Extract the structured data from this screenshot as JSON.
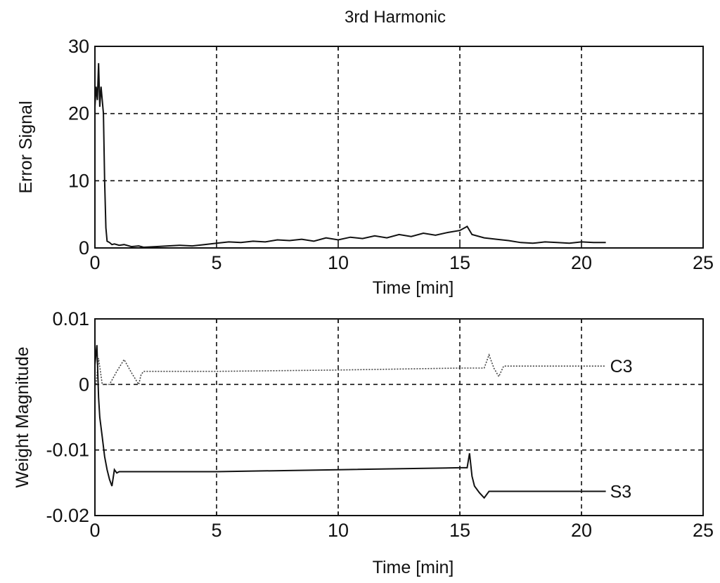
{
  "chart_data": [
    {
      "type": "line",
      "title": "3rd Harmonic",
      "xlabel": "Time [min]",
      "ylabel": "Error Signal",
      "xlim": [
        0,
        25
      ],
      "ylim": [
        0,
        30
      ],
      "xticks": [
        "0",
        "5",
        "10",
        "15",
        "20",
        "25"
      ],
      "yticks": [
        "0",
        "10",
        "20",
        "30"
      ],
      "grid": true,
      "series": [
        {
          "style": "solid",
          "x": [
            0,
            0.05,
            0.1,
            0.15,
            0.2,
            0.25,
            0.3,
            0.35,
            0.4,
            0.45,
            0.5,
            0.6,
            0.7,
            0.8,
            1.0,
            1.2,
            1.5,
            1.8,
            2.0,
            2.5,
            3.0,
            3.5,
            4.0,
            4.5,
            5.0,
            5.5,
            6.0,
            6.5,
            7.0,
            7.5,
            8.0,
            8.5,
            9.0,
            9.5,
            10.0,
            10.5,
            11.0,
            11.5,
            12.0,
            12.5,
            13.0,
            13.5,
            14.0,
            14.5,
            15.0,
            15.3,
            15.5,
            16.0,
            16.5,
            17.0,
            17.5,
            18.0,
            18.5,
            19.0,
            19.5,
            20.0,
            20.5,
            21.0
          ],
          "values": [
            21,
            24,
            22,
            27.5,
            21,
            24,
            22,
            20,
            10,
            3,
            1,
            0.8,
            0.5,
            0.6,
            0.4,
            0.5,
            0.2,
            0.3,
            0.1,
            0.2,
            0.3,
            0.4,
            0.3,
            0.5,
            0.7,
            0.9,
            0.8,
            1.0,
            0.9,
            1.2,
            1.1,
            1.3,
            1.0,
            1.5,
            1.2,
            1.6,
            1.4,
            1.8,
            1.5,
            2.0,
            1.7,
            2.2,
            1.9,
            2.3,
            2.6,
            3.2,
            2.0,
            1.5,
            1.3,
            1.1,
            0.8,
            0.7,
            0.9,
            0.8,
            0.7,
            0.9,
            0.8,
            0.8
          ]
        }
      ]
    },
    {
      "type": "line",
      "title": "",
      "xlabel": "Time [min]",
      "ylabel": "Weight Magnitude",
      "xlim": [
        0,
        25
      ],
      "ylim": [
        -0.02,
        0.01
      ],
      "xticks": [
        "0",
        "5",
        "10",
        "15",
        "20",
        "25"
      ],
      "yticks": [
        "-0.02",
        "-0.01",
        "0",
        "0.01"
      ],
      "grid": true,
      "series": [
        {
          "name": "C3",
          "style": "dotted",
          "x": [
            0.05,
            0.15,
            0.3,
            0.6,
            0.9,
            1.2,
            1.5,
            1.8,
            1.9,
            2.0,
            5.0,
            10.0,
            15.0,
            16.0,
            16.2,
            16.4,
            16.6,
            16.8,
            21.0
          ],
          "values": [
            0.0,
            0.004,
            0.0,
            0.0,
            0.002,
            0.0038,
            0.0018,
            0.0,
            0.0015,
            0.002,
            0.002,
            0.0022,
            0.0025,
            0.0025,
            0.0045,
            0.0025,
            0.0012,
            0.0028,
            0.0028
          ]
        },
        {
          "name": "S3",
          "style": "solid",
          "x": [
            0.0,
            0.08,
            0.15,
            0.2,
            0.3,
            0.4,
            0.5,
            0.6,
            0.7,
            0.8,
            0.9,
            1.0,
            5.0,
            10.0,
            15.0,
            15.3,
            15.4,
            15.5,
            15.6,
            15.8,
            16.0,
            16.2,
            21.0
          ],
          "values": [
            0.003,
            0.006,
            -0.002,
            -0.005,
            -0.008,
            -0.011,
            -0.013,
            -0.0145,
            -0.0155,
            -0.013,
            -0.0135,
            -0.0133,
            -0.0133,
            -0.013,
            -0.0127,
            -0.0127,
            -0.0105,
            -0.014,
            -0.0155,
            -0.0165,
            -0.0173,
            -0.0163,
            -0.0163
          ]
        }
      ]
    }
  ]
}
